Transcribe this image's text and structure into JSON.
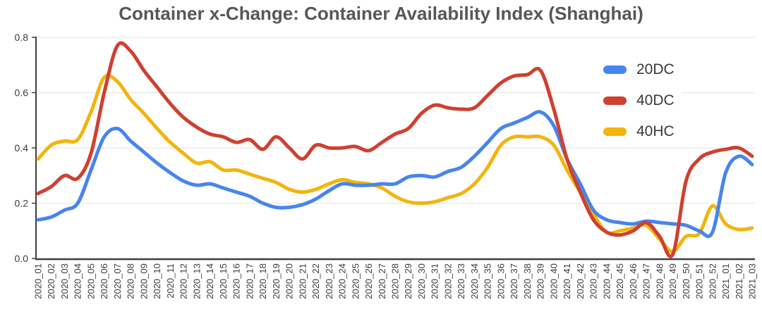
{
  "title": "Container x-Change: Container Availability Index (Shanghai)",
  "chart_data": {
    "type": "line",
    "title": "Container x-Change: Container Availability Index (Shanghai)",
    "xlabel": "",
    "ylabel": "",
    "ylim": [
      0,
      0.8
    ],
    "yticks": [
      0.0,
      0.2,
      0.4,
      0.6,
      0.8
    ],
    "grid": true,
    "legend_position": "right-top",
    "axis_color": "#3f3f3f",
    "gridline_color": "#e3e3e3",
    "tick_label_color": "#3c3c3c",
    "categories": [
      "2020_01",
      "2020_02",
      "2020_03",
      "2020_04",
      "2020_05",
      "2020_06",
      "2020_07",
      "2020_08",
      "2020_09",
      "2020_10",
      "2020_11",
      "2020_12",
      "2020_13",
      "2020_14",
      "2020_15",
      "2020_16",
      "2020_17",
      "2020_18",
      "2020_19",
      "2020_20",
      "2020_21",
      "2020_22",
      "2020_23",
      "2020_24",
      "2020_25",
      "2020_26",
      "2020_27",
      "2020_28",
      "2020_29",
      "2020_30",
      "2020_31",
      "2020_32",
      "2020_33",
      "2020_34",
      "2020_35",
      "2020_36",
      "2020_37",
      "2020_38",
      "2020_39",
      "2020_40",
      "2020_41",
      "2020_42",
      "2020_43",
      "2020_44",
      "2020_45",
      "2020_46",
      "2020_47",
      "2020_48",
      "2020_49",
      "2020_50",
      "2020_51",
      "2020_52",
      "2021_01",
      "2021_02",
      "2021_03"
    ],
    "series": [
      {
        "name": "20DC",
        "color": "#4785ee",
        "values": [
          0.14,
          0.15,
          0.175,
          0.2,
          0.32,
          0.44,
          0.47,
          0.425,
          0.385,
          0.345,
          0.31,
          0.28,
          0.265,
          0.27,
          0.255,
          0.24,
          0.225,
          0.2,
          0.185,
          0.185,
          0.195,
          0.215,
          0.245,
          0.27,
          0.265,
          0.265,
          0.27,
          0.27,
          0.295,
          0.3,
          0.295,
          0.315,
          0.33,
          0.37,
          0.42,
          0.47,
          0.49,
          0.51,
          0.53,
          0.48,
          0.36,
          0.27,
          0.175,
          0.14,
          0.13,
          0.125,
          0.135,
          0.13,
          0.125,
          0.12,
          0.1,
          0.095,
          0.31,
          0.37,
          0.34
        ]
      },
      {
        "name": "40DC",
        "color": "#cf4030",
        "values": [
          0.235,
          0.26,
          0.3,
          0.29,
          0.38,
          0.6,
          0.77,
          0.75,
          0.68,
          0.62,
          0.56,
          0.51,
          0.475,
          0.45,
          0.44,
          0.42,
          0.43,
          0.395,
          0.44,
          0.4,
          0.36,
          0.41,
          0.4,
          0.4,
          0.405,
          0.39,
          0.42,
          0.45,
          0.47,
          0.525,
          0.555,
          0.545,
          0.54,
          0.545,
          0.59,
          0.635,
          0.66,
          0.665,
          0.68,
          0.54,
          0.36,
          0.24,
          0.14,
          0.095,
          0.085,
          0.1,
          0.13,
          0.08,
          0.015,
          0.28,
          0.36,
          0.385,
          0.395,
          0.4,
          0.37
        ]
      },
      {
        "name": "40HC",
        "color": "#f2b50e",
        "values": [
          0.36,
          0.41,
          0.425,
          0.43,
          0.53,
          0.655,
          0.64,
          0.575,
          0.525,
          0.47,
          0.42,
          0.38,
          0.345,
          0.35,
          0.32,
          0.32,
          0.305,
          0.29,
          0.275,
          0.25,
          0.24,
          0.25,
          0.27,
          0.285,
          0.275,
          0.27,
          0.255,
          0.225,
          0.205,
          0.2,
          0.205,
          0.22,
          0.235,
          0.27,
          0.33,
          0.41,
          0.44,
          0.44,
          0.44,
          0.41,
          0.32,
          0.24,
          0.16,
          0.095,
          0.1,
          0.11,
          0.12,
          0.07,
          0.025,
          0.08,
          0.09,
          0.19,
          0.125,
          0.105,
          0.11
        ]
      }
    ]
  }
}
